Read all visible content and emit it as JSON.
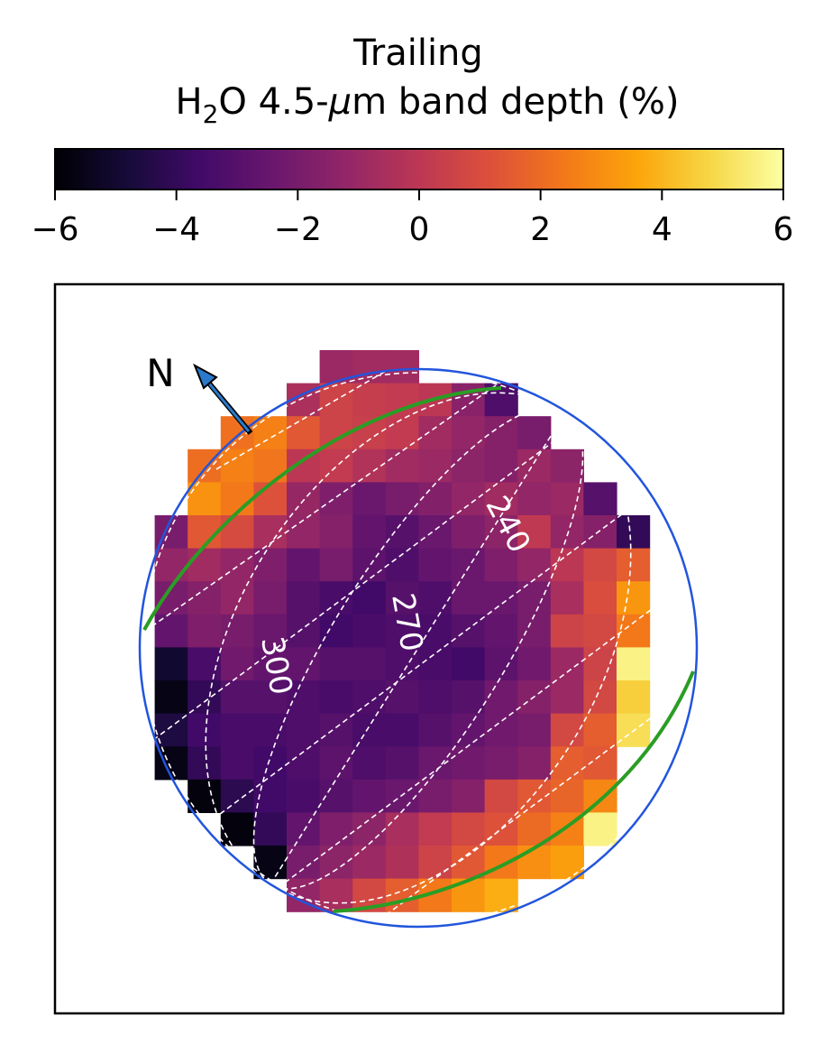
{
  "chart_data": {
    "type": "heatmap",
    "title": "Trailing",
    "colorbar": {
      "label_prefix": "H",
      "label_subscript": "2",
      "label_middle": "O 4.5-",
      "label_mu": "μ",
      "label_suffix": "m band depth (%)",
      "range": [
        -6,
        6
      ],
      "ticks": [
        -6,
        -4,
        -2,
        0,
        2,
        4,
        6
      ],
      "tick_labels": [
        "−6",
        "−4",
        "−2",
        "0",
        "2",
        "4",
        "6"
      ],
      "colormap": "inferno"
    },
    "north_label": "N",
    "longitude_labels": [
      {
        "text": "240",
        "value": 240
      },
      {
        "text": "270",
        "value": 270
      },
      {
        "text": "300",
        "value": 300
      }
    ],
    "grid_rows": 17,
    "grid_cols": 17,
    "values": [
      [
        null,
        null,
        null,
        null,
        null,
        null,
        -1.0,
        -0.8,
        -0.8,
        null,
        null,
        null,
        null,
        null,
        null,
        null,
        null
      ],
      [
        null,
        null,
        null,
        null,
        null,
        -0.5,
        0.6,
        0.3,
        0.2,
        0.0,
        -1.5,
        -3.2,
        null,
        null,
        null,
        null,
        null
      ],
      [
        null,
        null,
        null,
        2.2,
        2.6,
        1.4,
        0.6,
        0.4,
        0.2,
        -0.8,
        -1.2,
        -1.6,
        -2.0,
        null,
        null,
        null,
        null
      ],
      [
        null,
        null,
        2.1,
        2.6,
        2.3,
        0.0,
        0.2,
        -0.3,
        -0.8,
        -1.0,
        -1.4,
        -1.6,
        -1.0,
        -1.4,
        null,
        null,
        null
      ],
      [
        null,
        null,
        3.1,
        2.4,
        1.2,
        -1.1,
        -1.8,
        -2.4,
        -2.0,
        -1.7,
        -1.2,
        -0.8,
        -1.2,
        -1.0,
        -3.0,
        null,
        null
      ],
      [
        null,
        -2.0,
        1.4,
        0.9,
        -0.6,
        -1.2,
        -1.6,
        -2.6,
        -3.0,
        -2.4,
        -1.8,
        -1.4,
        0.1,
        -1.2,
        -1.6,
        -4.0,
        null
      ],
      [
        null,
        -1.2,
        -0.8,
        -1.2,
        -1.8,
        -2.6,
        -2.0,
        -2.8,
        -3.2,
        -2.6,
        -2.4,
        -1.8,
        -1.2,
        0.0,
        0.8,
        1.6,
        null
      ],
      [
        null,
        -2.0,
        -1.6,
        -1.2,
        -2.0,
        -3.0,
        -3.4,
        -3.6,
        -3.0,
        -3.2,
        -2.4,
        -2.4,
        -2.0,
        -0.6,
        1.0,
        3.2,
        null
      ],
      [
        null,
        -2.6,
        -1.8,
        -2.0,
        -2.4,
        -3.0,
        -3.6,
        -3.4,
        -3.2,
        -3.4,
        -3.0,
        -2.6,
        -2.0,
        0.6,
        0.8,
        2.4,
        null
      ],
      [
        null,
        -5.0,
        -3.4,
        -2.2,
        -2.6,
        -2.6,
        -3.0,
        -3.0,
        -3.2,
        -3.4,
        -3.6,
        -2.8,
        -2.2,
        -1.0,
        0.6,
        5.6,
        null
      ],
      [
        null,
        -5.6,
        -4.0,
        -3.0,
        -3.0,
        -3.2,
        -3.4,
        -3.2,
        -3.0,
        -3.2,
        -3.0,
        -2.2,
        -1.6,
        -1.0,
        0.8,
        4.6,
        null
      ],
      [
        null,
        -4.6,
        -3.6,
        -3.4,
        -3.4,
        -3.2,
        -3.0,
        -3.4,
        -3.4,
        -3.0,
        -2.6,
        -2.2,
        -2.0,
        0.8,
        1.6,
        5.0,
        null
      ],
      [
        null,
        -5.6,
        -4.0,
        -3.4,
        -3.6,
        -3.2,
        -2.8,
        -3.2,
        -3.0,
        -2.4,
        -2.2,
        -2.0,
        -1.6,
        1.6,
        1.4,
        null,
        null
      ],
      [
        null,
        null,
        -5.8,
        -4.2,
        -3.6,
        -3.4,
        -3.0,
        -2.6,
        -2.4,
        -2.0,
        -1.6,
        0.8,
        1.4,
        1.8,
        2.8,
        null,
        null
      ],
      [
        null,
        null,
        null,
        -5.8,
        -4.0,
        -2.6,
        -1.8,
        -1.4,
        -0.6,
        0.2,
        0.8,
        1.2,
        2.0,
        2.6,
        5.6,
        null,
        null
      ],
      [
        null,
        null,
        null,
        null,
        -5.6,
        -2.0,
        -1.4,
        -1.0,
        -0.4,
        0.6,
        1.4,
        2.4,
        3.0,
        3.4,
        null,
        null,
        null
      ],
      [
        null,
        null,
        null,
        null,
        null,
        -1.2,
        -0.6,
        0.8,
        1.6,
        2.4,
        3.2,
        3.8,
        null,
        null,
        null,
        null,
        null
      ]
    ]
  }
}
